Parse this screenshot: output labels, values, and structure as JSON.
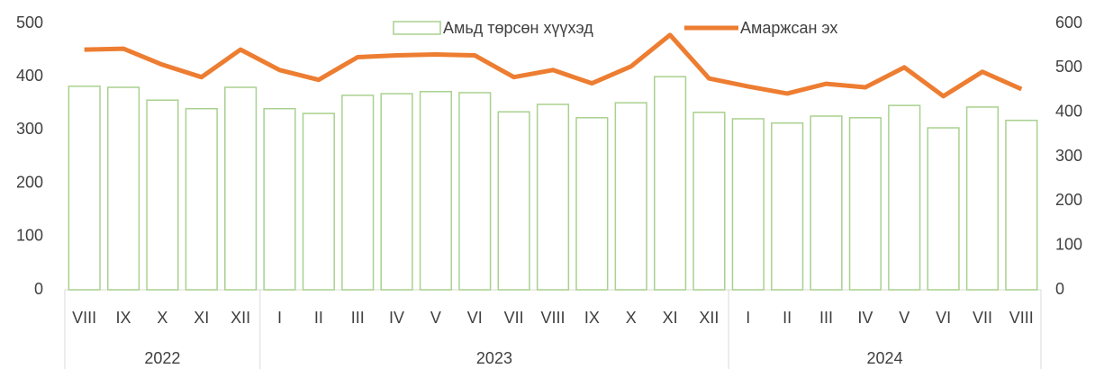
{
  "chart_data": {
    "type": "bar_line",
    "categories": [
      "VIII",
      "IX",
      "X",
      "XI",
      "XII",
      "I",
      "II",
      "III",
      "IV",
      "V",
      "VI",
      "VII",
      "VIII",
      "IX",
      "X",
      "XI",
      "XII",
      "I",
      "II",
      "III",
      "IV",
      "V",
      "VI",
      "VII",
      "VIII"
    ],
    "groups": [
      {
        "label": "2022",
        "span": 5
      },
      {
        "label": "2023",
        "span": 12
      },
      {
        "label": "2024",
        "span": 8
      }
    ],
    "series": [
      {
        "name": "Амьд төрсөн хүүхэд",
        "type": "bar",
        "color": "#a9d18e",
        "axis": "y",
        "values": [
          382,
          380,
          356,
          340,
          380,
          340,
          331,
          365,
          368,
          372,
          370,
          334,
          348,
          323,
          351,
          400,
          333,
          321,
          313,
          326,
          323,
          346,
          304,
          343,
          318
        ]
      },
      {
        "name": "Амаржсан эх",
        "type": "line",
        "color": "#ed7d31",
        "axis": "y2",
        "values": [
          541,
          543,
          507,
          479,
          541,
          495,
          473,
          524,
          528,
          530,
          528,
          479,
          495,
          465,
          503,
          574,
          476,
          458,
          442,
          464,
          456,
          501,
          436,
          491,
          452
        ]
      }
    ],
    "ylim": [
      0,
      500
    ],
    "yticks": [
      0,
      100,
      200,
      300,
      400,
      500
    ],
    "y2lim": [
      0,
      600
    ],
    "y2ticks": [
      0,
      100,
      200,
      300,
      400,
      500,
      600
    ],
    "legend": "top"
  }
}
